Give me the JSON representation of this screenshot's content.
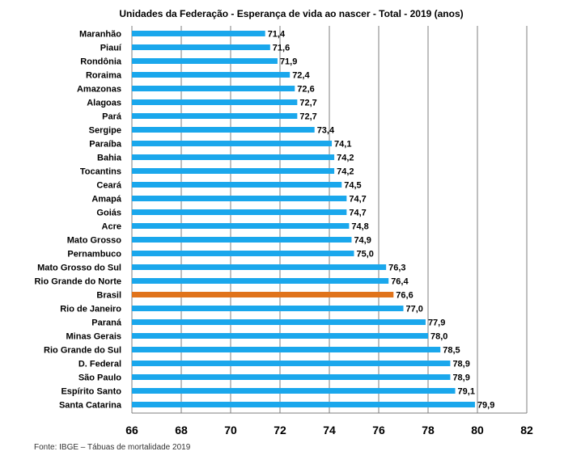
{
  "chart_data": {
    "type": "bar",
    "orientation": "horizontal",
    "title": "Unidades da Federação - Esperança de vida ao nascer - Total - 2019  (anos)",
    "categories": [
      "Maranhão",
      "Piauí",
      "Rondônia",
      "Roraima",
      "Amazonas",
      "Alagoas",
      "Pará",
      "Sergipe",
      "Paraíba",
      "Bahia",
      "Tocantins",
      "Ceará",
      "Amapá",
      "Goiás",
      "Acre",
      "Mato Grosso",
      "Pernambuco",
      "Mato Grosso do Sul",
      "Rio Grande do Norte",
      "Brasil",
      "Rio de Janeiro",
      "Paraná",
      "Minas Gerais",
      "Rio Grande do Sul",
      "D. Federal",
      "São Paulo",
      "Espírito Santo",
      "Santa Catarina"
    ],
    "values": [
      71.4,
      71.6,
      71.9,
      72.4,
      72.6,
      72.7,
      72.7,
      73.4,
      74.1,
      74.2,
      74.2,
      74.5,
      74.7,
      74.7,
      74.8,
      74.9,
      75.0,
      76.3,
      76.4,
      76.6,
      77.0,
      77.9,
      78.0,
      78.5,
      78.9,
      78.9,
      79.1,
      79.9
    ],
    "value_labels": [
      "71,4",
      "71,6",
      "71,9",
      "72,4",
      "72,6",
      "72,7",
      "72,7",
      "73,4",
      "74,1",
      "74,2",
      "74,2",
      "74,5",
      "74,7",
      "74,7",
      "74,8",
      "74,9",
      "75,0",
      "76,3",
      "76,4",
      "76,6",
      "77,0",
      "77,9",
      "78,0",
      "78,5",
      "78,9",
      "78,9",
      "79,1",
      "79,9"
    ],
    "xlim": [
      66,
      82
    ],
    "x_ticks": [
      66,
      68,
      70,
      72,
      74,
      76,
      78,
      80,
      82
    ],
    "x_tick_labels": [
      "66",
      "68",
      "70",
      "72",
      "74",
      "76",
      "78",
      "80",
      "82"
    ],
    "grid": "vertical",
    "highlight_category": "Brasil",
    "colors": {
      "bar": "#1AA7EC",
      "highlight": "#E0731B",
      "grid": "#7f7f7f"
    }
  },
  "source_note": "Fonte: IBGE – Tábuas de mortalidade 2019"
}
